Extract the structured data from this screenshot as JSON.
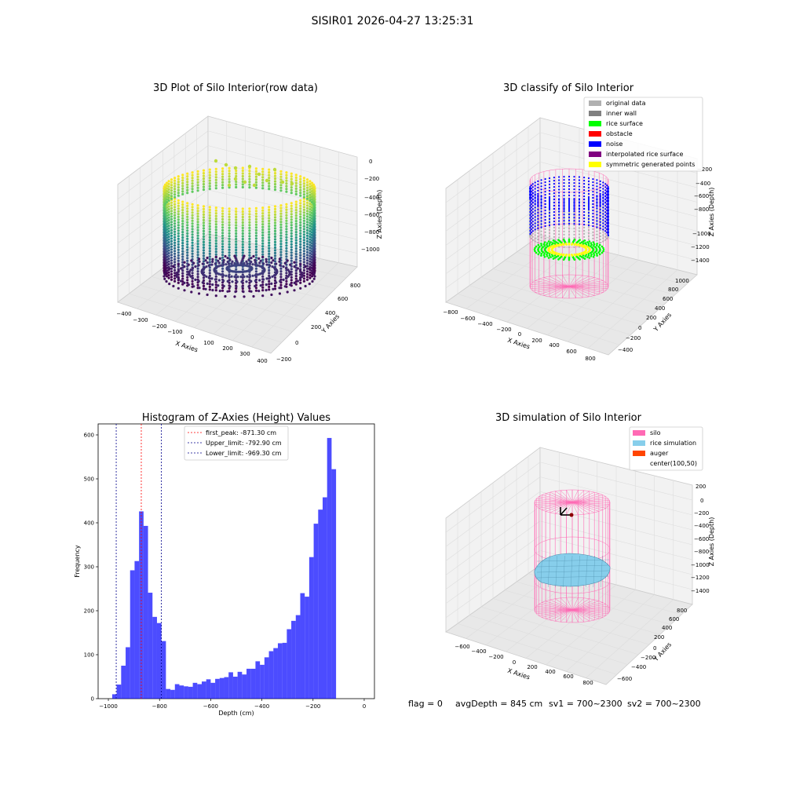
{
  "suptitle": "SISIR01 2026-04-27 13:25:31",
  "footer": {
    "flag": "flag = 0",
    "avg_depth": "avgDepth = 845 cm",
    "sv1": "sv1 = 700~2300",
    "sv2": "sv2 = 700~2300"
  },
  "chart_data": [
    {
      "type": "scatter",
      "projection": "3d",
      "title": "3D Plot of Silo Interior(row data)",
      "xlabel": "X Axies",
      "ylabel": "Y Axies",
      "zlabel": "Z Axies (Depth)",
      "x_ticks": [
        "−400",
        "−300",
        "−200",
        "−100",
        "0",
        "100",
        "200",
        "300",
        "400"
      ],
      "y_ticks": [
        "−200",
        "0",
        "200",
        "400",
        "600",
        "800"
      ],
      "z_ticks": [
        "0",
        "−200",
        "−400",
        "−600",
        "−800",
        "−1000"
      ],
      "xlim": [
        -400,
        400
      ],
      "ylim": [
        -200,
        900
      ],
      "zlim": [
        -1100,
        0
      ],
      "colormap": "viridis",
      "colormap_stops": [
        "#440154",
        "#3b528b",
        "#21918c",
        "#5ec962",
        "#fde725"
      ],
      "legend": null
    },
    {
      "type": "scatter",
      "projection": "3d",
      "title": "3D classify of Silo Interior",
      "xlabel": "X Axies",
      "ylabel": "Y Axies",
      "zlabel": "Z Axies (Depth)",
      "x_ticks": [
        "−800",
        "−600",
        "−400",
        "−200",
        "0",
        "200",
        "400",
        "600",
        "800"
      ],
      "y_ticks": [
        "−400",
        "−200",
        "0",
        "200",
        "400",
        "600",
        "800",
        "1000"
      ],
      "z_ticks": [
        "−200",
        "−400",
        "−600",
        "−800",
        "−1000",
        "−1200",
        "−1400"
      ],
      "legend_position": "top-right",
      "legend": [
        {
          "label": "original data",
          "color": "#b0b0b0"
        },
        {
          "label": "inner wall",
          "color": "#808080"
        },
        {
          "label": "rice surface",
          "color": "#00ff00"
        },
        {
          "label": "obstacle",
          "color": "#ff0000"
        },
        {
          "label": "noise",
          "color": "#0000ff"
        },
        {
          "label": "interpolated rice surface",
          "color": "#800080"
        },
        {
          "label": "symmetric generated points",
          "color": "#ffff00"
        }
      ],
      "silo_color": "#ff69b4"
    },
    {
      "type": "bar",
      "title": "Histogram of Z-Axies (Height) Values",
      "xlabel": "Depth (cm)",
      "ylabel": "Frequency",
      "xlim": [
        -1040,
        40
      ],
      "ylim": [
        0,
        625
      ],
      "x_ticks": [
        -1000,
        -800,
        -600,
        -400,
        -200,
        0
      ],
      "x_tick_labels": [
        "−1000",
        "−800",
        "−600",
        "−400",
        "−200",
        "0"
      ],
      "y_ticks": [
        0,
        100,
        200,
        300,
        400,
        500,
        600
      ],
      "bar_color": "#0000ff",
      "bar_alpha": 0.7,
      "bin_start": -985,
      "bin_width": 17.5,
      "values": [
        10,
        32,
        75,
        117,
        292,
        313,
        426,
        393,
        241,
        186,
        172,
        131,
        22,
        20,
        33,
        30,
        28,
        27,
        36,
        33,
        39,
        44,
        36,
        45,
        47,
        49,
        60,
        50,
        61,
        55,
        68,
        68,
        85,
        77,
        94,
        108,
        115,
        126,
        127,
        158,
        177,
        190,
        240,
        232,
        322,
        398,
        430,
        458,
        593,
        522
      ],
      "reference_lines": [
        {
          "label": "first_peak: -871.30 cm",
          "value": -871.3,
          "color": "#ff0000"
        },
        {
          "label": "Upper_limit: -792.90 cm",
          "value": -792.9,
          "color": "#00008b"
        },
        {
          "label": "Lower_limit: -969.30 cm",
          "value": -969.3,
          "color": "#00008b"
        }
      ],
      "legend_position": "upper-center"
    },
    {
      "type": "surface",
      "projection": "3d",
      "title": "3D simulation of Silo Interior",
      "xlabel": "X Axies",
      "ylabel": "Y Axies",
      "zlabel": "Z Axies (Depth)",
      "x_ticks": [
        "−600",
        "−400",
        "−200",
        "0",
        "200",
        "400",
        "600",
        "800"
      ],
      "y_ticks": [
        "−600",
        "−400",
        "−200",
        "0",
        "200",
        "400",
        "600",
        "800"
      ],
      "z_ticks": [
        "200",
        "0",
        "−200",
        "−400",
        "−600",
        "−800",
        "−1000",
        "−1200",
        "−1400"
      ],
      "legend_position": "top-right",
      "legend": [
        {
          "label": "silo",
          "color": "#ff69b4"
        },
        {
          "label": "rice simulation",
          "color": "#87ceeb"
        },
        {
          "label": "auger",
          "color": "#ff4500"
        },
        {
          "label": "center(100,50)",
          "color": "none"
        }
      ]
    }
  ]
}
